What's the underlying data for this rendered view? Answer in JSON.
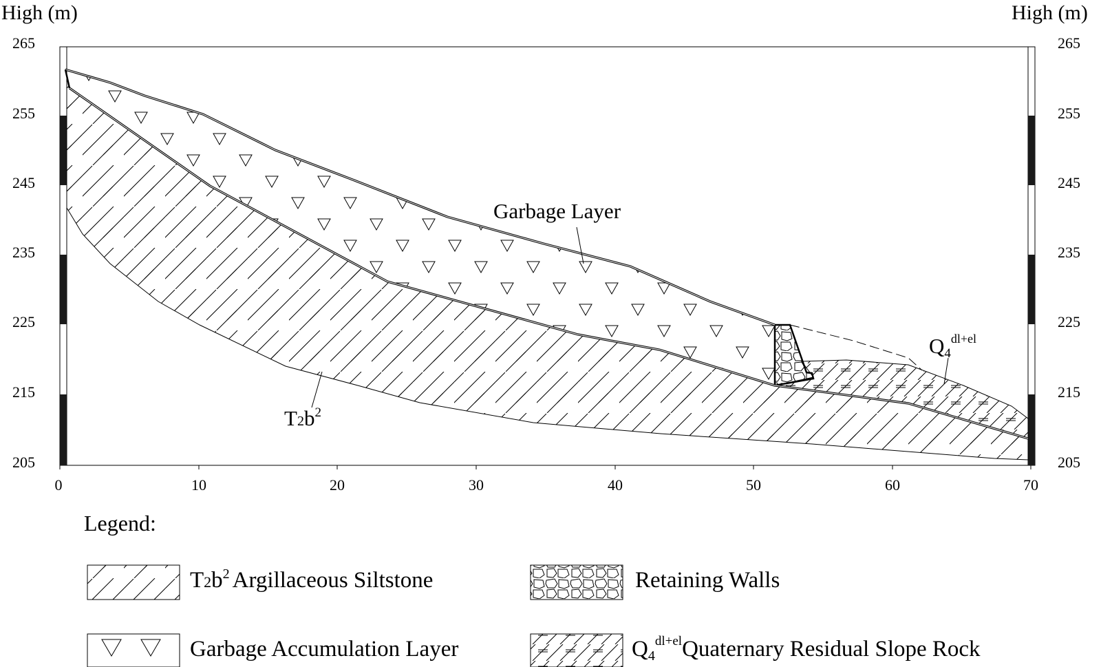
{
  "axis": {
    "left_title": "High (m)",
    "right_title": "High (m)",
    "y_ticks": [
      "265",
      "255",
      "245",
      "235",
      "225",
      "215",
      "205"
    ],
    "x_ticks": [
      "0",
      "10",
      "20",
      "30",
      "40",
      "50",
      "60",
      "70"
    ]
  },
  "labels": {
    "garbage_layer": "Garbage Layer",
    "bedrock_base": "T",
    "bedrock_sub": "2",
    "bedrock_tail": "b",
    "bedrock_sup": "2",
    "quaternary_base": "Q",
    "quaternary_sub": "4",
    "quaternary_sup": "dl+el"
  },
  "legend": {
    "title": "Legend:",
    "items": [
      {
        "prefix_base": "T",
        "prefix_sub": "2",
        "prefix_tail": "b",
        "prefix_sup": "2",
        "text": "Argillaceous Siltstone"
      },
      {
        "text": "Retaining Walls"
      },
      {
        "text": "Garbage Accumulation Layer"
      },
      {
        "prefix_base": "Q",
        "prefix_sub": "4",
        "prefix_sup": "dl+el",
        "text": "Quaternary Residual Slope Rock"
      }
    ]
  }
}
